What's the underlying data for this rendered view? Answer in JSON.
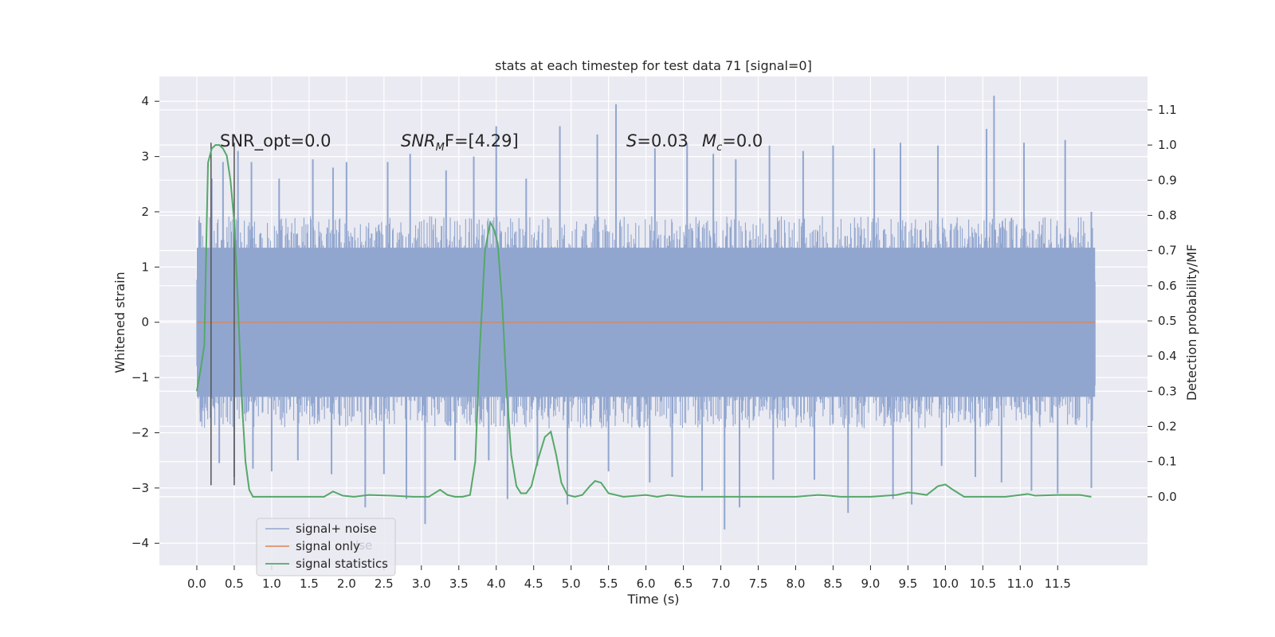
{
  "chart_data": {
    "type": "line",
    "title": "stats at each timestep for test data 71 [signal=0]",
    "xlabel": "Time (s)",
    "ylabel_left": "Whitened strain",
    "ylabel_right": "Detection probability/MF",
    "xlim": [
      -0.5,
      12.7
    ],
    "xticks": [
      0.0,
      0.5,
      1.0,
      1.5,
      2.0,
      2.5,
      3.0,
      3.5,
      4.0,
      4.5,
      5.0,
      5.5,
      6.0,
      6.5,
      7.0,
      7.5,
      8.0,
      8.5,
      9.0,
      9.5,
      10.0,
      10.5,
      11.0,
      11.5
    ],
    "ylim_left": [
      -4.4,
      4.45
    ],
    "yticks_left": [
      -4,
      -3,
      -2,
      -1,
      0,
      1,
      2,
      3,
      4
    ],
    "ylim_right": [
      -0.195,
      1.195
    ],
    "yticks_right": [
      0.0,
      0.1,
      0.2,
      0.3,
      0.4,
      0.5,
      0.6,
      0.7,
      0.8,
      0.9,
      1.0,
      1.1
    ],
    "grid": true,
    "legend_position": "lower-left",
    "legend": [
      {
        "label": "signal+ noise",
        "color": "#91a6cf"
      },
      {
        "label": "signal only",
        "color": "#dd8452"
      },
      {
        "label": "signal statistics",
        "color": "#55a868"
      }
    ],
    "legend_ghost_text": "ise",
    "annotations": {
      "snr_opt": "SNR_opt=0.0",
      "snr_mf_base": "SNR",
      "snr_mf_sub": "M",
      "snr_mf_rest": "F=[4.29]",
      "s_var": "S",
      "s_val": "=0.03",
      "mc_var": "M",
      "mc_sub": "c",
      "mc_val": "=0.0"
    },
    "vertical_lines_x": [
      0.19,
      0.5
    ],
    "vertical_lines_range": [
      -2.95,
      3.25
    ],
    "series": [
      {
        "name": "signal+ noise",
        "axis": "left",
        "color": "#91a6cf",
        "x_range": [
          0.0,
          12.0
        ],
        "envelope_upper_typical": 1.6,
        "envelope_lower_typical": -1.6,
        "peaks": [
          [
            0.05,
            1.8
          ],
          [
            0.2,
            2.6
          ],
          [
            0.35,
            2.9
          ],
          [
            0.55,
            3.1
          ],
          [
            0.73,
            2.9
          ],
          [
            1.1,
            2.6
          ],
          [
            1.55,
            2.95
          ],
          [
            1.82,
            2.8
          ],
          [
            2.0,
            2.9
          ],
          [
            2.55,
            2.9
          ],
          [
            2.85,
            3.05
          ],
          [
            3.33,
            2.75
          ],
          [
            3.7,
            3.0
          ],
          [
            4.0,
            3.55
          ],
          [
            4.4,
            2.6
          ],
          [
            4.85,
            3.55
          ],
          [
            5.35,
            3.4
          ],
          [
            5.6,
            3.95
          ],
          [
            6.12,
            3.15
          ],
          [
            6.55,
            3.25
          ],
          [
            6.9,
            3.05
          ],
          [
            7.2,
            2.95
          ],
          [
            7.65,
            3.2
          ],
          [
            8.1,
            3.1
          ],
          [
            8.5,
            3.2
          ],
          [
            9.05,
            3.15
          ],
          [
            9.4,
            3.25
          ],
          [
            9.9,
            3.2
          ],
          [
            10.55,
            3.5
          ],
          [
            10.65,
            4.1
          ],
          [
            11.05,
            3.25
          ],
          [
            11.6,
            3.3
          ],
          [
            11.95,
            2.0
          ]
        ],
        "troughs": [
          [
            0.05,
            -1.8
          ],
          [
            0.3,
            -2.55
          ],
          [
            0.5,
            -2.8
          ],
          [
            0.75,
            -2.65
          ],
          [
            1.0,
            -2.7
          ],
          [
            1.35,
            -2.5
          ],
          [
            1.8,
            -2.75
          ],
          [
            2.25,
            -3.35
          ],
          [
            2.5,
            -2.75
          ],
          [
            2.8,
            -3.2
          ],
          [
            3.05,
            -3.65
          ],
          [
            3.45,
            -2.5
          ],
          [
            3.9,
            -2.5
          ],
          [
            4.15,
            -3.2
          ],
          [
            4.55,
            -2.6
          ],
          [
            4.95,
            -3.3
          ],
          [
            5.5,
            -2.7
          ],
          [
            6.05,
            -2.9
          ],
          [
            6.35,
            -2.8
          ],
          [
            6.75,
            -3.05
          ],
          [
            7.05,
            -3.75
          ],
          [
            7.25,
            -3.35
          ],
          [
            7.7,
            -2.85
          ],
          [
            8.25,
            -2.85
          ],
          [
            8.7,
            -3.45
          ],
          [
            9.3,
            -3.2
          ],
          [
            9.55,
            -3.3
          ],
          [
            9.95,
            -2.6
          ],
          [
            10.4,
            -2.8
          ],
          [
            10.75,
            -2.9
          ],
          [
            11.15,
            -3.05
          ],
          [
            11.5,
            -3.1
          ],
          [
            11.95,
            -3.0
          ]
        ]
      },
      {
        "name": "signal only",
        "axis": "left",
        "color": "#dd8452",
        "x": [
          0.0,
          12.0
        ],
        "y": [
          0.0,
          0.0
        ]
      },
      {
        "name": "signal statistics",
        "axis": "right",
        "color": "#55a868",
        "x": [
          0.0,
          0.05,
          0.1,
          0.13,
          0.15,
          0.2,
          0.25,
          0.3,
          0.35,
          0.4,
          0.45,
          0.5,
          0.55,
          0.6,
          0.65,
          0.7,
          0.75,
          1.0,
          1.3,
          1.5,
          1.7,
          1.82,
          1.95,
          2.1,
          2.3,
          2.6,
          2.9,
          3.1,
          3.25,
          3.35,
          3.45,
          3.55,
          3.65,
          3.72,
          3.78,
          3.85,
          3.92,
          3.97,
          4.02,
          4.08,
          4.14,
          4.2,
          4.27,
          4.33,
          4.4,
          4.47,
          4.55,
          4.65,
          4.73,
          4.8,
          4.87,
          4.95,
          5.05,
          5.15,
          5.25,
          5.32,
          5.4,
          5.5,
          5.7,
          6.0,
          6.15,
          6.3,
          6.55,
          7.0,
          7.5,
          8.0,
          8.3,
          8.45,
          8.6,
          9.0,
          9.35,
          9.5,
          9.6,
          9.75,
          9.9,
          10.0,
          10.1,
          10.25,
          10.5,
          10.8,
          11.0,
          11.1,
          11.2,
          11.5,
          11.8,
          11.95
        ],
        "y": [
          0.3,
          0.36,
          0.43,
          0.75,
          0.95,
          0.99,
          1.0,
          1.0,
          0.99,
          0.97,
          0.9,
          0.78,
          0.55,
          0.28,
          0.1,
          0.02,
          0.0,
          0.0,
          0.0,
          0.0,
          0.0,
          0.015,
          0.003,
          0.0,
          0.005,
          0.003,
          0.0,
          0.0,
          0.02,
          0.005,
          0.0,
          0.0,
          0.005,
          0.1,
          0.42,
          0.7,
          0.78,
          0.76,
          0.72,
          0.55,
          0.3,
          0.12,
          0.03,
          0.01,
          0.01,
          0.03,
          0.1,
          0.17,
          0.185,
          0.12,
          0.04,
          0.005,
          0.0,
          0.005,
          0.03,
          0.045,
          0.04,
          0.01,
          0.0,
          0.005,
          0.0,
          0.005,
          0.0,
          0.0,
          0.0,
          0.0,
          0.005,
          0.003,
          0.0,
          0.0,
          0.005,
          0.012,
          0.01,
          0.005,
          0.03,
          0.035,
          0.02,
          0.0,
          0.0,
          0.0,
          0.005,
          0.008,
          0.003,
          0.005,
          0.005,
          0.0
        ]
      }
    ]
  }
}
